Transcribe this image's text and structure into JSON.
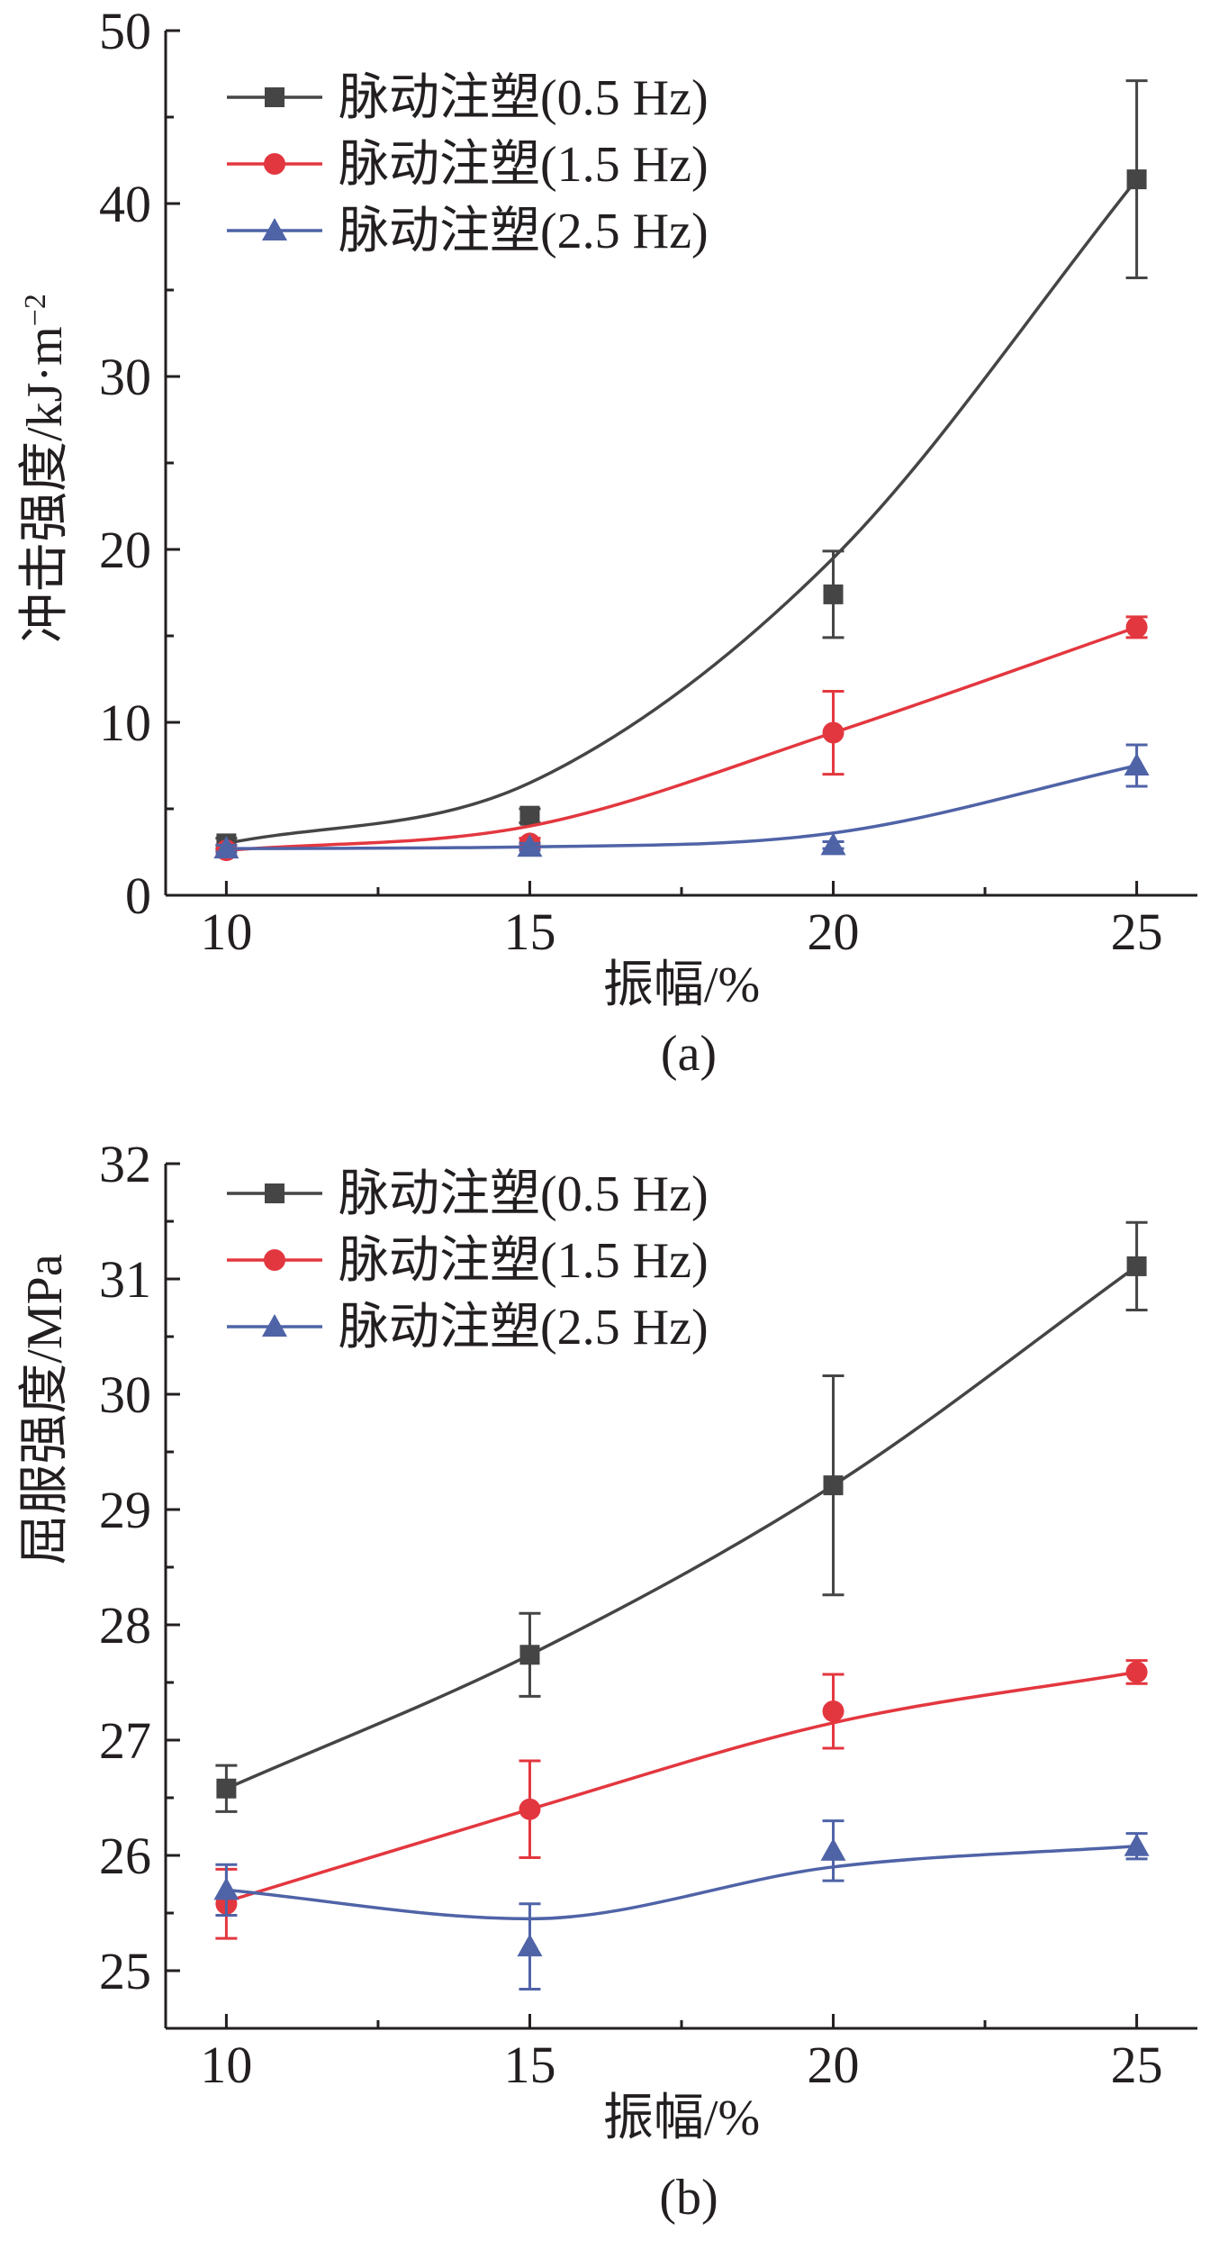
{
  "chart_data": [
    {
      "type": "line",
      "panel_label": "(a)",
      "xlabel": "振幅/%",
      "ylabel": "冲击强度/kJ·m",
      "ylabel_sup": "−2",
      "x": [
        10,
        15,
        20,
        25
      ],
      "x_ticks": [
        "10",
        "15",
        "20",
        "25"
      ],
      "xlim": [
        9,
        26
      ],
      "y_ticks": [
        "0",
        "10",
        "20",
        "30",
        "40",
        "50"
      ],
      "ylim": [
        0,
        50
      ],
      "legend_position": "top-left",
      "series": [
        {
          "name": "脉动注塑(0.5 Hz)",
          "marker": "square",
          "color": "#454545",
          "values": [
            3.0,
            4.6,
            17.4,
            41.4
          ],
          "errors": [
            0.3,
            0.4,
            2.5,
            5.7
          ],
          "fit": [
            3.0,
            6.5,
            19.5,
            41.4
          ]
        },
        {
          "name": "脉动注塑(1.5 Hz)",
          "marker": "circle",
          "color": "#e3373f",
          "values": [
            2.6,
            3.0,
            9.4,
            15.5
          ],
          "errors": [
            0.3,
            0.3,
            2.4,
            0.6
          ],
          "fit": [
            2.6,
            4.0,
            9.4,
            15.5
          ]
        },
        {
          "name": "脉动注塑(2.5 Hz)",
          "marker": "triangle",
          "color": "#4f63a7",
          "values": [
            2.7,
            2.8,
            2.9,
            7.5
          ],
          "errors": [
            0.2,
            0.2,
            0.2,
            1.2
          ],
          "fit": [
            2.7,
            2.8,
            3.6,
            7.5
          ]
        }
      ]
    },
    {
      "type": "line",
      "panel_label": "(b)",
      "xlabel": "振幅/%",
      "ylabel": "屈服强度/MPa",
      "x": [
        10,
        15,
        20,
        25
      ],
      "x_ticks": [
        "10",
        "15",
        "20",
        "25"
      ],
      "xlim": [
        9,
        26
      ],
      "y_ticks": [
        "25",
        "26",
        "27",
        "28",
        "29",
        "30",
        "31",
        "32"
      ],
      "ylim": [
        24.5,
        32
      ],
      "legend_position": "top-left",
      "series": [
        {
          "name": "脉动注塑(0.5 Hz)",
          "marker": "square",
          "color": "#454545",
          "values": [
            26.58,
            27.74,
            29.21,
            31.11
          ],
          "errors": [
            0.2,
            0.36,
            0.95,
            0.38
          ],
          "fit": [
            26.58,
            27.74,
            29.21,
            31.11
          ]
        },
        {
          "name": "脉动注塑(1.5 Hz)",
          "marker": "circle",
          "color": "#e3373f",
          "values": [
            25.58,
            26.4,
            27.25,
            27.59
          ],
          "errors": [
            0.3,
            0.42,
            0.32,
            0.1
          ],
          "fit": [
            25.6,
            26.4,
            27.15,
            27.59
          ]
        },
        {
          "name": "脉动注塑(2.5 Hz)",
          "marker": "triangle",
          "color": "#4f63a7",
          "values": [
            25.7,
            25.21,
            26.04,
            26.08
          ],
          "errors": [
            0.22,
            0.37,
            0.26,
            0.11
          ],
          "fit": [
            25.7,
            25.45,
            25.9,
            26.08
          ]
        }
      ]
    }
  ]
}
